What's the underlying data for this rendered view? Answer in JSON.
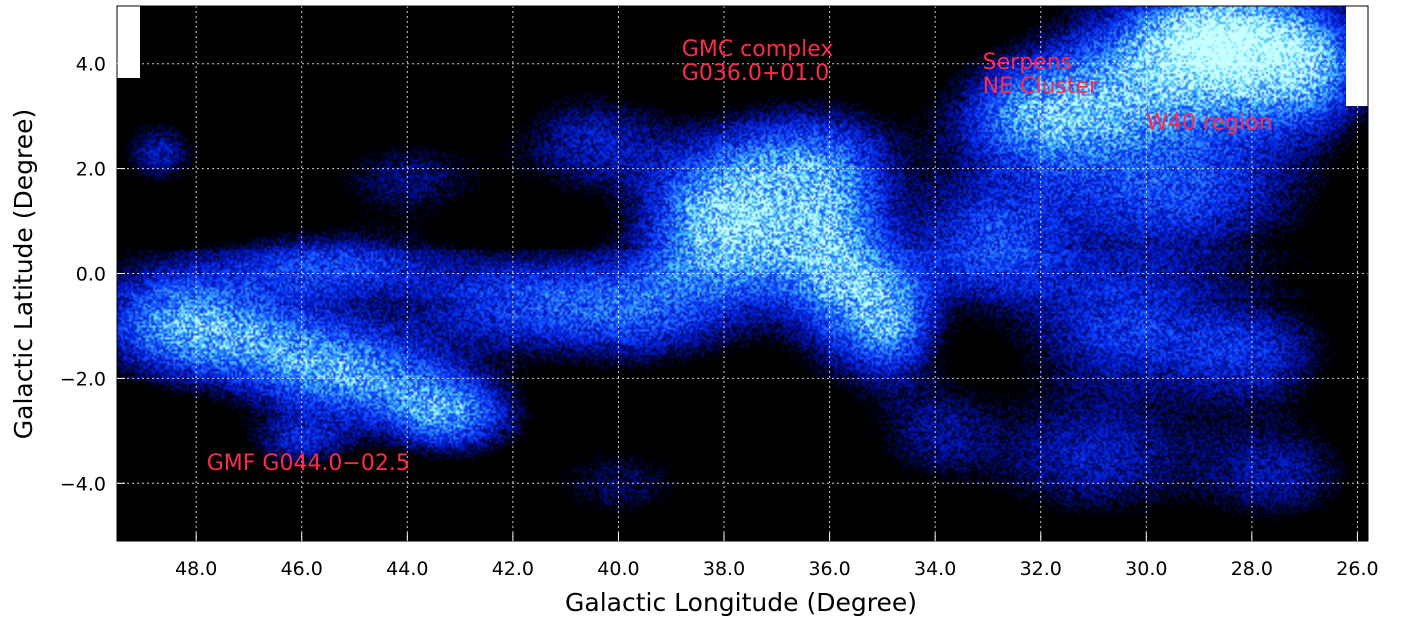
{
  "chart_data": {
    "type": "heatmap",
    "xlabel": "Galactic Longitude (Degree)",
    "ylabel": "Galactic Latitude (Degree)",
    "xlim": [
      49.5,
      25.8
    ],
    "ylim": [
      -5.1,
      5.1
    ],
    "x_ticks": [
      48.0,
      46.0,
      44.0,
      42.0,
      40.0,
      38.0,
      36.0,
      34.0,
      32.0,
      30.0,
      28.0,
      26.0
    ],
    "x_tick_labels": [
      "48.0",
      "46.0",
      "44.0",
      "42.0",
      "40.0",
      "38.0",
      "36.0",
      "34.0",
      "32.0",
      "30.0",
      "28.0",
      "26.0"
    ],
    "y_ticks": [
      4.0,
      2.0,
      0.0,
      -2.0,
      -4.0
    ],
    "y_tick_labels": [
      "4.0",
      "2.0",
      "0.0",
      "−2.0",
      "−4.0"
    ],
    "grid": true,
    "colormap": [
      "#000000",
      "#0010b0",
      "#0a3cff",
      "#2a7dff",
      "#4fd0ff",
      "#c8ffff"
    ],
    "annotations": [
      {
        "lines": [
          "GMC complex",
          "G036.0+01.0"
        ],
        "l": 38.8,
        "b": 4.15
      },
      {
        "lines": [
          "Serpens",
          "NE Cluster"
        ],
        "l": 33.1,
        "b": 3.9
      },
      {
        "lines": [
          "W40 region"
        ],
        "l": 30.0,
        "b": 2.75
      },
      {
        "lines": [
          "GMF G044.0−02.5"
        ],
        "l": 47.8,
        "b": -3.75
      }
    ],
    "emission_blobs": [
      {
        "l": 47.0,
        "b": -1.2,
        "rl": 2.2,
        "rb": 0.9,
        "w": 0.75
      },
      {
        "l": 45.0,
        "b": -2.0,
        "rl": 1.8,
        "rb": 0.8,
        "w": 0.8
      },
      {
        "l": 43.2,
        "b": -2.7,
        "rl": 1.2,
        "rb": 0.7,
        "w": 0.85
      },
      {
        "l": 48.5,
        "b": -0.8,
        "rl": 1.5,
        "rb": 1.0,
        "w": 0.55
      },
      {
        "l": 45.5,
        "b": 0.2,
        "rl": 2.0,
        "rb": 0.6,
        "w": 0.55
      },
      {
        "l": 42.0,
        "b": -0.6,
        "rl": 2.0,
        "rb": 0.9,
        "w": 0.55
      },
      {
        "l": 39.5,
        "b": -0.7,
        "rl": 1.8,
        "rb": 1.0,
        "w": 0.6
      },
      {
        "l": 38.5,
        "b": 1.0,
        "rl": 1.2,
        "rb": 1.2,
        "w": 0.65
      },
      {
        "l": 37.3,
        "b": 0.9,
        "rl": 1.3,
        "rb": 1.4,
        "w": 0.8
      },
      {
        "l": 35.8,
        "b": 0.2,
        "rl": 1.0,
        "rb": 1.8,
        "w": 0.85
      },
      {
        "l": 34.8,
        "b": -0.9,
        "rl": 0.8,
        "rb": 1.0,
        "w": 0.8
      },
      {
        "l": 36.5,
        "b": 2.2,
        "rl": 1.8,
        "rb": 1.0,
        "w": 0.55
      },
      {
        "l": 33.0,
        "b": 0.6,
        "rl": 1.5,
        "rb": 1.2,
        "w": 0.6
      },
      {
        "l": 32.0,
        "b": 3.0,
        "rl": 1.6,
        "rb": 1.0,
        "w": 0.85
      },
      {
        "l": 29.5,
        "b": 3.8,
        "rl": 2.2,
        "rb": 1.4,
        "w": 1.0
      },
      {
        "l": 28.6,
        "b": 4.5,
        "rl": 1.3,
        "rb": 0.8,
        "w": 1.0
      },
      {
        "l": 27.0,
        "b": 4.0,
        "rl": 1.2,
        "rb": 1.2,
        "w": 0.9
      },
      {
        "l": 29.5,
        "b": 1.5,
        "rl": 2.5,
        "rb": 1.2,
        "w": 0.6
      },
      {
        "l": 30.5,
        "b": -1.0,
        "rl": 1.8,
        "rb": 1.2,
        "w": 0.55
      },
      {
        "l": 28.0,
        "b": -1.5,
        "rl": 1.5,
        "rb": 1.0,
        "w": 0.5
      },
      {
        "l": 31.0,
        "b": -3.5,
        "rl": 2.0,
        "rb": 1.2,
        "w": 0.45
      },
      {
        "l": 27.5,
        "b": -3.8,
        "rl": 1.5,
        "rb": 1.0,
        "w": 0.4
      },
      {
        "l": 40.5,
        "b": 2.5,
        "rl": 1.5,
        "rb": 1.0,
        "w": 0.45
      },
      {
        "l": 44.0,
        "b": 1.8,
        "rl": 1.5,
        "rb": 0.8,
        "w": 0.35
      },
      {
        "l": 48.7,
        "b": 2.3,
        "rl": 0.7,
        "rb": 0.6,
        "w": 0.45
      },
      {
        "l": 40.0,
        "b": -4.0,
        "rl": 1.5,
        "rb": 0.8,
        "w": 0.3
      },
      {
        "l": 34.0,
        "b": -3.0,
        "rl": 1.2,
        "rb": 1.0,
        "w": 0.35
      },
      {
        "l": 46.0,
        "b": -3.2,
        "rl": 1.0,
        "rb": 0.5,
        "w": 0.45
      }
    ]
  }
}
